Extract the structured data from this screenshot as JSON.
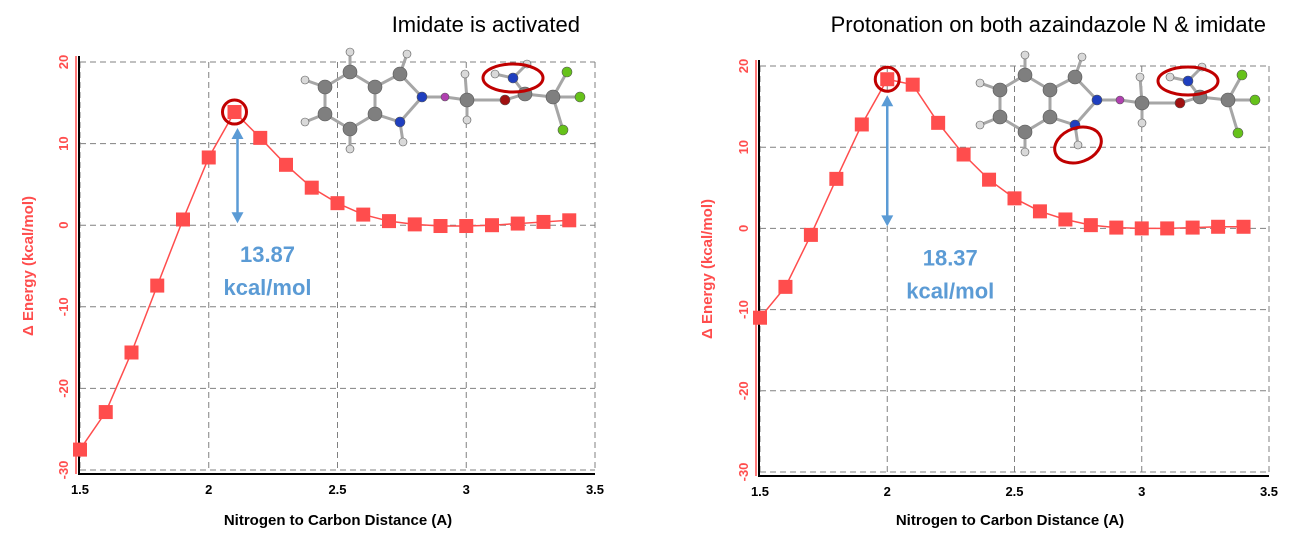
{
  "chart_data": [
    {
      "type": "scatter",
      "title": "Imidate is activated",
      "xlabel": "Nitrogen to Carbon Distance (A)",
      "ylabel": "Δ Energy (kcal/mol)",
      "xlim": [
        1.5,
        3.5
      ],
      "ylim": [
        -30,
        20
      ],
      "xticks": [
        "1.5",
        "2",
        "2.5",
        "3",
        "3.5"
      ],
      "yticks": [
        "-30",
        "-20",
        "-10",
        "0",
        "10",
        "20"
      ],
      "grid": true,
      "x": [
        1.5,
        1.6,
        1.7,
        1.8,
        1.9,
        2.0,
        2.1,
        2.2,
        2.3,
        2.4,
        2.5,
        2.6,
        2.7,
        2.8,
        2.9,
        3.0,
        3.1,
        3.2,
        3.3,
        3.4
      ],
      "y": [
        -27.5,
        -22.9,
        -15.6,
        -7.4,
        0.7,
        8.3,
        13.87,
        10.7,
        7.4,
        4.6,
        2.7,
        1.3,
        0.5,
        0.1,
        -0.1,
        -0.1,
        0.0,
        0.2,
        0.4,
        0.6
      ],
      "highlight_x": 2.1,
      "barrier_value": "13.87",
      "barrier_unit": "kcal/mol",
      "series_color": "#ff4d4d",
      "annotation_color": "#5b9bd5",
      "highlight_color": "#c00000"
    },
    {
      "type": "scatter",
      "title": "Protonation on both azaindazole N & imidate",
      "xlabel": "Nitrogen to Carbon Distance (A)",
      "ylabel": "Δ Energy (kcal/mol)",
      "xlim": [
        1.5,
        3.5
      ],
      "ylim": [
        -30,
        20
      ],
      "xticks": [
        "1.5",
        "2",
        "2.5",
        "3",
        "3.5"
      ],
      "yticks": [
        "-30",
        "-20",
        "-10",
        "0",
        "10",
        "20"
      ],
      "grid": true,
      "x": [
        1.5,
        1.6,
        1.7,
        1.8,
        1.9,
        2.0,
        2.1,
        2.2,
        2.3,
        2.4,
        2.5,
        2.6,
        2.7,
        2.8,
        2.9,
        3.0,
        3.1,
        3.2,
        3.3,
        3.4
      ],
      "y": [
        -11.0,
        -7.2,
        -0.8,
        6.1,
        12.8,
        18.37,
        17.7,
        13.0,
        9.1,
        6.0,
        3.7,
        2.1,
        1.1,
        0.4,
        0.1,
        0.0,
        0.0,
        0.1,
        0.2,
        0.2
      ],
      "highlight_x": 2.0,
      "barrier_value": "18.37",
      "barrier_unit": "kcal/mol",
      "series_color": "#ff4d4d",
      "annotation_color": "#5b9bd5",
      "highlight_color": "#c00000"
    }
  ]
}
